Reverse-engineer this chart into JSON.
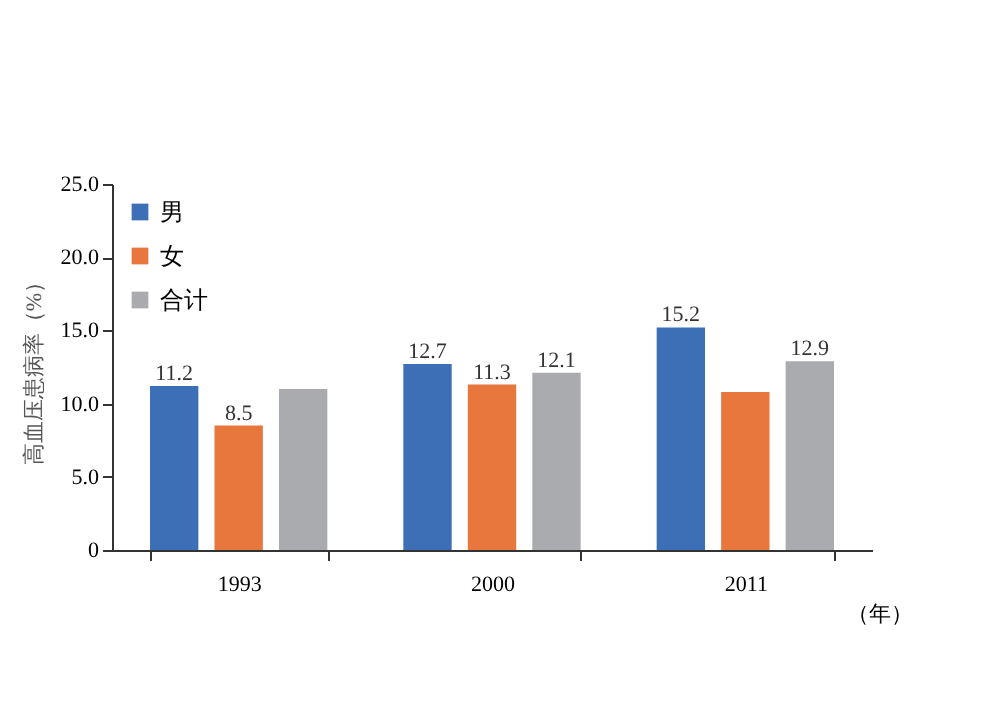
{
  "chart_data": {
    "type": "bar",
    "xlabel": "（年）",
    "ylabel": "高血压患病率（%）",
    "categories": [
      "1993",
      "2000",
      "2011"
    ],
    "series": [
      {
        "name": "男",
        "color": "#3d6fb6",
        "values": [
          11.2,
          12.7,
          15.2
        ],
        "value_labels": [
          "11.2",
          "12.7",
          "15.2"
        ]
      },
      {
        "name": "女",
        "color": "#e8773d",
        "values": [
          8.5,
          11.3,
          10.8
        ],
        "value_labels": [
          "8.5",
          "11.3",
          null
        ]
      },
      {
        "name": "合计",
        "color": "#a9abae",
        "values": [
          11.0,
          12.1,
          12.9
        ],
        "value_labels": [
          null,
          "12.1",
          "12.9"
        ]
      }
    ],
    "ylim": [
      0,
      25
    ],
    "yticks": [
      {
        "value": 0,
        "label": "0"
      },
      {
        "value": 5,
        "label": "5.0"
      },
      {
        "value": 10,
        "label": "10.0"
      },
      {
        "value": 15,
        "label": "15.0"
      },
      {
        "value": 20,
        "label": "20.0"
      },
      {
        "value": 25,
        "label": "25.0"
      }
    ],
    "grid": false,
    "legend": "top left"
  }
}
